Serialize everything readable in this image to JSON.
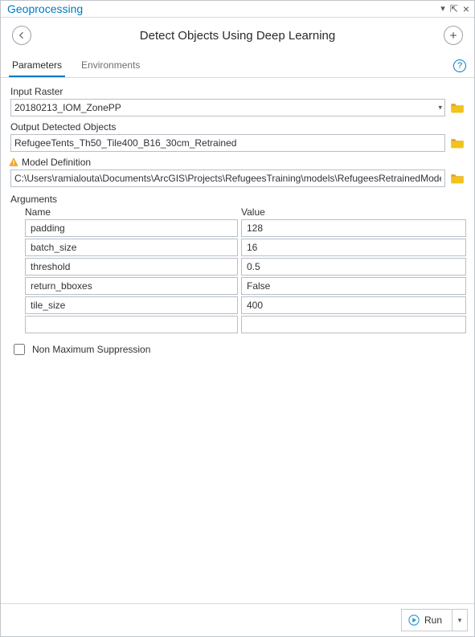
{
  "pane_title": "Geoprocessing",
  "tool_title": "Detect Objects Using Deep Learning",
  "tabs": {
    "parameters": "Parameters",
    "environments": "Environments"
  },
  "colors": {
    "accent": "#007ac2",
    "border": "#b8bfc7",
    "folder_back": "#e0a13b",
    "folder_front": "#f0c419",
    "warn": "#f9a825",
    "play": "#2e9bd6"
  },
  "params": {
    "input_raster": {
      "label": "Input Raster",
      "value": "20180213_IOM_ZonePP"
    },
    "output_detected": {
      "label": "Output Detected Objects",
      "value": "RefugeeTents_Th50_Tile400_B16_30cm_Retrained"
    },
    "model_def": {
      "label": "Model Definition",
      "value": "C:\\Users\\ramialouta\\Documents\\ArcGIS\\Projects\\RefugeesTraining\\models\\RefugeesRetrainedMode",
      "has_warning": true
    }
  },
  "arguments": {
    "section_label": "Arguments",
    "name_header": "Name",
    "value_header": "Value",
    "rows": [
      {
        "name": "padding",
        "value": "128"
      },
      {
        "name": "batch_size",
        "value": "16"
      },
      {
        "name": "threshold",
        "value": "0.5"
      },
      {
        "name": "return_bboxes",
        "value": "False"
      },
      {
        "name": "tile_size",
        "value": "400"
      },
      {
        "name": "",
        "value": ""
      }
    ]
  },
  "nms": {
    "label": "Non Maximum Suppression",
    "checked": false
  },
  "run_label": "Run"
}
